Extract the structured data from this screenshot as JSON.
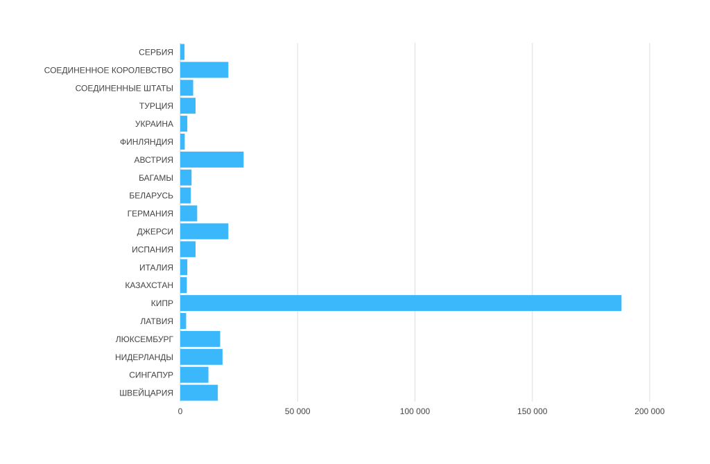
{
  "chart_data": {
    "type": "bar",
    "orientation": "horizontal",
    "title": "",
    "xlabel": "",
    "ylabel": "",
    "categories": [
      "СЕРБИЯ",
      "СОЕДИНЕННОЕ КОРОЛЕВСТВО",
      "СОЕДИНЕННЫЕ ШТАТЫ",
      "ТУРЦИЯ",
      "УКРАИНА",
      "ФИНЛЯНДИЯ",
      "АВСТРИЯ",
      "БАГАМЫ",
      "БЕЛАРУСЬ",
      "ГЕРМАНИЯ",
      "ДЖЕРСИ",
      "ИСПАНИЯ",
      "ИТАЛИЯ",
      "КАЗАХСТАН",
      "КИПР",
      "ЛАТВИЯ",
      "ЛЮКСЕМБУРГ",
      "НИДЕРЛАНДЫ",
      "СИНГАПУР",
      "ШВЕЙЦАРИЯ"
    ],
    "values": [
      1800,
      20500,
      5500,
      6500,
      3000,
      1900,
      27000,
      4800,
      4500,
      7200,
      20500,
      6500,
      3000,
      2800,
      188000,
      2500,
      17000,
      18000,
      12000,
      16000
    ],
    "xlim": [
      0,
      200000
    ],
    "x_ticks": [
      0,
      50000,
      100000,
      150000,
      200000
    ],
    "x_tick_labels": [
      "0",
      "50 000",
      "100 000",
      "150 000",
      "200 000"
    ],
    "grid": "vertical",
    "legend": "none",
    "bar_color": "#3bb8fc",
    "grid_color": "#dddddd",
    "label_color": "#444444"
  }
}
